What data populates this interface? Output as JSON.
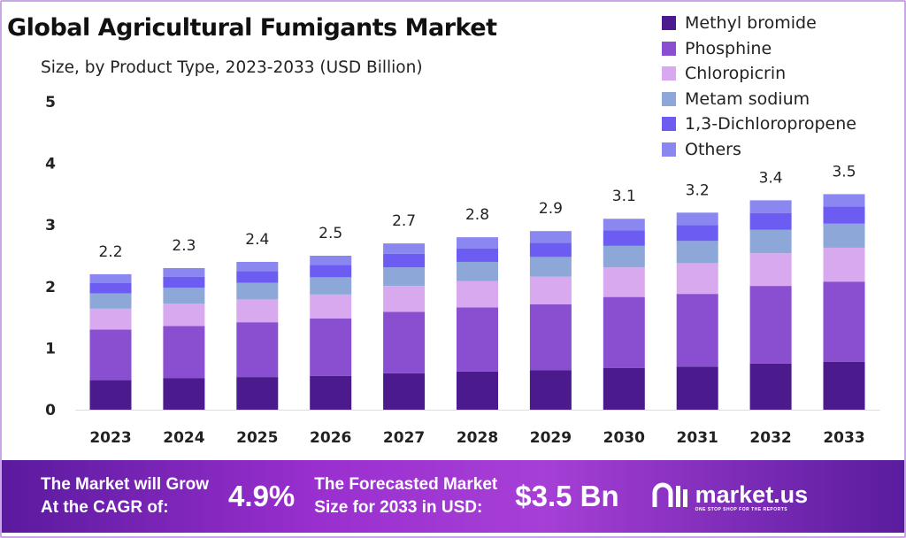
{
  "chart_data": {
    "type": "bar",
    "stacked": true,
    "title": "Global Agricultural Fumigants Market",
    "subtitle": "Size, by Product Type, 2023-2033 (USD Billion)",
    "categories": [
      "2023",
      "2024",
      "2025",
      "2026",
      "2027",
      "2028",
      "2029",
      "2030",
      "2031",
      "2032",
      "2033"
    ],
    "totals": [
      "2.2",
      "2.3",
      "2.4",
      "2.5",
      "2.7",
      "2.8",
      "2.9",
      "3.1",
      "3.2",
      "3.4",
      "3.5"
    ],
    "yticks": [
      "0",
      "1",
      "2",
      "3",
      "4",
      "5"
    ],
    "ylim": [
      0,
      5
    ],
    "grid": false,
    "legend_position": "top-right",
    "series": [
      {
        "name": "Methyl bromide",
        "color": "#4b1a8c",
        "values": [
          0.48,
          0.51,
          0.53,
          0.55,
          0.59,
          0.62,
          0.64,
          0.68,
          0.7,
          0.75,
          0.78
        ]
      },
      {
        "name": "Phosphine",
        "color": "#8a4ed0",
        "values": [
          0.82,
          0.85,
          0.89,
          0.93,
          1.0,
          1.04,
          1.07,
          1.15,
          1.18,
          1.26,
          1.3
        ]
      },
      {
        "name": "Chloropicrin",
        "color": "#d9a9ef",
        "values": [
          0.34,
          0.36,
          0.37,
          0.39,
          0.42,
          0.43,
          0.45,
          0.48,
          0.5,
          0.53,
          0.55
        ]
      },
      {
        "name": "Metam sodium",
        "color": "#8da7d9",
        "values": [
          0.25,
          0.26,
          0.27,
          0.28,
          0.3,
          0.31,
          0.32,
          0.35,
          0.36,
          0.38,
          0.39
        ]
      },
      {
        "name": "1,3-Dichloropropene",
        "color": "#6c5cf2",
        "values": [
          0.17,
          0.18,
          0.19,
          0.2,
          0.22,
          0.22,
          0.23,
          0.25,
          0.26,
          0.27,
          0.28
        ]
      },
      {
        "name": "Others",
        "color": "#8b87f0",
        "values": [
          0.14,
          0.14,
          0.15,
          0.15,
          0.17,
          0.18,
          0.19,
          0.19,
          0.2,
          0.21,
          0.2
        ]
      }
    ]
  },
  "footer": {
    "cagr_line1": "The Market will Grow",
    "cagr_line2": "At the CAGR of:",
    "cagr_value": "4.9%",
    "forecast_line1": "The Forecasted Market",
    "forecast_line2": "Size for 2033 in USD:",
    "forecast_value": "$3.5 Bn",
    "brand": "market.us",
    "brand_tagline": "ONE STOP SHOP FOR THE REPORTS"
  }
}
